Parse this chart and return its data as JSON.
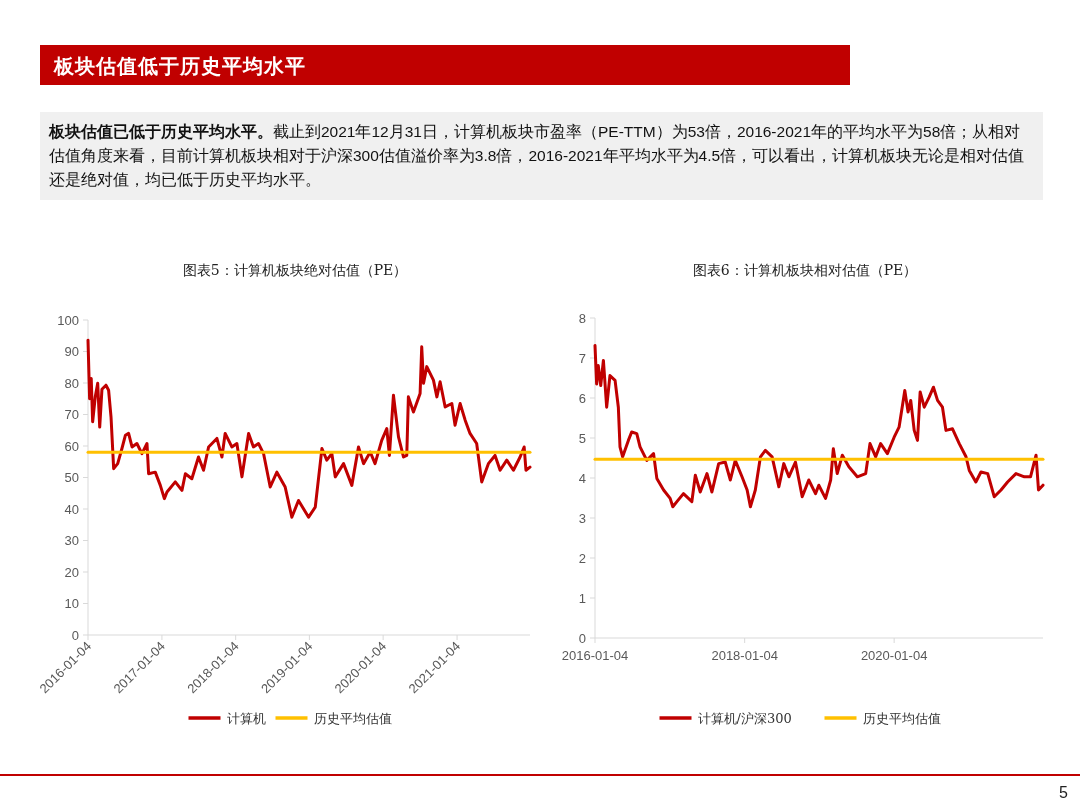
{
  "chart_data": [
    {
      "type": "other",
      "title": "板块估值低于历史平均水平",
      "annotations": [
        "板块估值已低于历史平均水平。",
        "截止到2021年12月31日，计算机板块市盈率（PE-TTM）为53倍，2016-2021年的平均水平为58倍；从相对估值角度来看，目前计算机板块相对于沪深300估值溢价率为3.8倍，2016-2021年平均水平为4.5倍，可以看出，计算机板块无论是相对估值还是绝对值，均已低于历史平均水平。",
        "5"
      ]
    },
    {
      "type": "line",
      "title": "图表5：计算机板块绝对估值（PE）",
      "xlim": [
        "2016-01-04",
        "2021-12-31"
      ],
      "xticks": [
        "2016-01-04",
        "2017-01-04",
        "2018-01-04",
        "2019-01-04",
        "2020-01-04",
        "2021-01-04"
      ],
      "ylim": [
        0,
        100
      ],
      "yticks": [
        0,
        10,
        20,
        30,
        40,
        50,
        60,
        70,
        80,
        90,
        100
      ],
      "grid": false,
      "legend": "bottom",
      "series": [
        {
          "name": "计算机",
          "color": "#c00000",
          "x": [
            "2016-01-04",
            "2016-01-12",
            "2016-01-20",
            "2016-01-27",
            "2016-02-09",
            "2016-02-21",
            "2016-03-02",
            "2016-03-13",
            "2016-04-02",
            "2016-04-15",
            "2016-04-27",
            "2016-05-10",
            "2016-05-30",
            "2016-06-20",
            "2016-07-07",
            "2016-07-23",
            "2016-08-09",
            "2016-09-02",
            "2016-09-27",
            "2016-10-22",
            "2016-10-30",
            "2016-12-02",
            "2016-12-27",
            "2017-01-16",
            "2017-01-29",
            "2017-03-11",
            "2017-04-13",
            "2017-04-30",
            "2017-06-01",
            "2017-07-04",
            "2017-07-29",
            "2017-08-23",
            "2017-10-03",
            "2017-10-28",
            "2017-11-13",
            "2017-12-16",
            "2018-01-10",
            "2018-02-04",
            "2018-03-09",
            "2018-04-02",
            "2018-04-27",
            "2018-05-22",
            "2018-06-24",
            "2018-07-27",
            "2018-09-06",
            "2018-10-09",
            "2018-11-11",
            "2018-12-31",
            "2019-02-02",
            "2019-03-07",
            "2019-03-31",
            "2019-04-25",
            "2019-05-12",
            "2019-06-22",
            "2019-08-02",
            "2019-09-04",
            "2019-09-29",
            "2019-11-01",
            "2019-11-25",
            "2019-12-28",
            "2020-01-22",
            "2020-02-04",
            "2020-02-24",
            "2020-03-20",
            "2020-04-14",
            "2020-04-30",
            "2020-05-08",
            "2020-06-02",
            "2020-07-05",
            "2020-07-13",
            "2020-07-22",
            "2020-08-07",
            "2020-09-09",
            "2020-09-26",
            "2020-10-12",
            "2020-11-06",
            "2020-12-09",
            "2020-12-25",
            "2021-01-19",
            "2021-02-13",
            "2021-03-09",
            "2021-04-11",
            "2021-05-06",
            "2021-06-08",
            "2021-07-11",
            "2021-08-05",
            "2021-09-07",
            "2021-10-10",
            "2021-11-12",
            "2021-12-02",
            "2021-12-11",
            "2021-12-31"
          ],
          "values": [
            93.6,
            75,
            81.4,
            67.7,
            75.6,
            79.9,
            66,
            78,
            79.3,
            77.7,
            69.2,
            52.8,
            54.4,
            59.2,
            63.4,
            64,
            59.7,
            60.8,
            57.6,
            60.8,
            51.2,
            51.7,
            47.5,
            43.3,
            45.4,
            48.6,
            45.9,
            51.2,
            49.6,
            56.5,
            52.3,
            59.7,
            62.4,
            56.5,
            64,
            59.7,
            60.8,
            50.2,
            64,
            59.7,
            60.8,
            57.6,
            47,
            51.7,
            47,
            37.4,
            42.7,
            37.4,
            40.6,
            59.2,
            55.5,
            57.6,
            50.2,
            54.4,
            47.5,
            59.7,
            54.4,
            58.1,
            54.4,
            61.8,
            65.5,
            57,
            76.1,
            62.9,
            56.5,
            57,
            75.6,
            70.8,
            76.7,
            91.5,
            79.9,
            85.2,
            80.9,
            75.6,
            80.4,
            72.4,
            73.5,
            66.6,
            73.5,
            68.2,
            64,
            60.8,
            48.6,
            54.4,
            57,
            52.3,
            55.5,
            52.3,
            56.5,
            59.7,
            52.3,
            53.3
          ]
        },
        {
          "name": "历史平均估值",
          "color": "#ffc000",
          "x": [
            "2016-01-04",
            "2021-12-31"
          ],
          "values": [
            58,
            58
          ]
        }
      ]
    },
    {
      "type": "line",
      "title": "图表6：计算机板块相对估值（PE）",
      "xlim": [
        "2016-01-04",
        "2021-12-31"
      ],
      "xticks": [
        "2016-01-04",
        "2018-01-04",
        "2020-01-04"
      ],
      "ylim": [
        0,
        8
      ],
      "yticks": [
        0,
        1,
        2,
        3,
        4,
        5,
        6,
        7,
        8
      ],
      "grid": false,
      "legend": "bottom",
      "series": [
        {
          "name": "计算机/沪深300",
          "color": "#c00000",
          "x": [
            "2016-01-04",
            "2016-01-12",
            "2016-01-20",
            "2016-02-01",
            "2016-02-14",
            "2016-03-01",
            "2016-03-17",
            "2016-04-11",
            "2016-04-27",
            "2016-05-05",
            "2016-05-18",
            "2016-06-15",
            "2016-07-01",
            "2016-07-26",
            "2016-08-11",
            "2016-09-13",
            "2016-10-16",
            "2016-11-01",
            "2016-12-04",
            "2017-01-05",
            "2017-01-18",
            "2017-02-07",
            "2017-03-11",
            "2017-04-21",
            "2017-05-08",
            "2017-06-01",
            "2017-07-04",
            "2017-07-28",
            "2017-08-30",
            "2017-10-01",
            "2017-10-26",
            "2017-11-19",
            "2017-12-22",
            "2018-01-16",
            "2018-02-01",
            "2018-02-25",
            "2018-03-22",
            "2018-04-15",
            "2018-05-18",
            "2018-06-20",
            "2018-07-14",
            "2018-08-08",
            "2018-09-09",
            "2018-10-12",
            "2018-11-13",
            "2018-12-16",
            "2019-01-01",
            "2019-02-03",
            "2019-02-28",
            "2019-03-13",
            "2019-04-01",
            "2019-04-26",
            "2019-05-28",
            "2019-07-08",
            "2019-08-18",
            "2019-09-08",
            "2019-10-06",
            "2019-10-30",
            "2019-12-02",
            "2020-01-04",
            "2020-01-28",
            "2020-02-25",
            "2020-03-12",
            "2020-03-25",
            "2020-04-11",
            "2020-04-27",
            "2020-05-10",
            "2020-05-30",
            "2020-06-23",
            "2020-07-14",
            "2020-08-03",
            "2020-08-27",
            "2020-09-13",
            "2020-10-15",
            "2020-11-17",
            "2020-12-20",
            "2021-01-05",
            "2021-02-06",
            "2021-03-03",
            "2021-04-05",
            "2021-05-07",
            "2021-06-09",
            "2021-07-11",
            "2021-08-21",
            "2021-10-01",
            "2021-10-31",
            "2021-11-27",
            "2021-12-09",
            "2021-12-31"
          ],
          "values": [
            7.31,
            6.35,
            6.81,
            6.31,
            6.94,
            5.77,
            6.56,
            6.44,
            5.77,
            4.78,
            4.53,
            4.94,
            5.15,
            5.11,
            4.78,
            4.44,
            4.61,
            3.99,
            3.7,
            3.49,
            3.28,
            3.41,
            3.61,
            3.41,
            4.07,
            3.65,
            4.11,
            3.65,
            4.36,
            4.4,
            3.95,
            4.44,
            4.03,
            3.7,
            3.28,
            3.7,
            4.53,
            4.69,
            4.53,
            3.78,
            4.36,
            4.03,
            4.4,
            3.53,
            3.95,
            3.61,
            3.82,
            3.49,
            3.95,
            4.73,
            4.11,
            4.57,
            4.28,
            4.03,
            4.11,
            4.86,
            4.53,
            4.86,
            4.61,
            5.02,
            5.27,
            6.19,
            5.65,
            5.94,
            5.19,
            4.94,
            6.15,
            5.77,
            6.02,
            6.27,
            5.94,
            5.77,
            5.19,
            5.23,
            4.86,
            4.53,
            4.19,
            3.9,
            4.15,
            4.11,
            3.53,
            3.7,
            3.9,
            4.11,
            4.03,
            4.03,
            4.57,
            3.7,
            3.82
          ]
        },
        {
          "name": "历史平均估值",
          "color": "#ffc000",
          "x": [
            "2016-01-04",
            "2021-12-31"
          ],
          "values": [
            4.47,
            4.47
          ]
        }
      ]
    }
  ]
}
